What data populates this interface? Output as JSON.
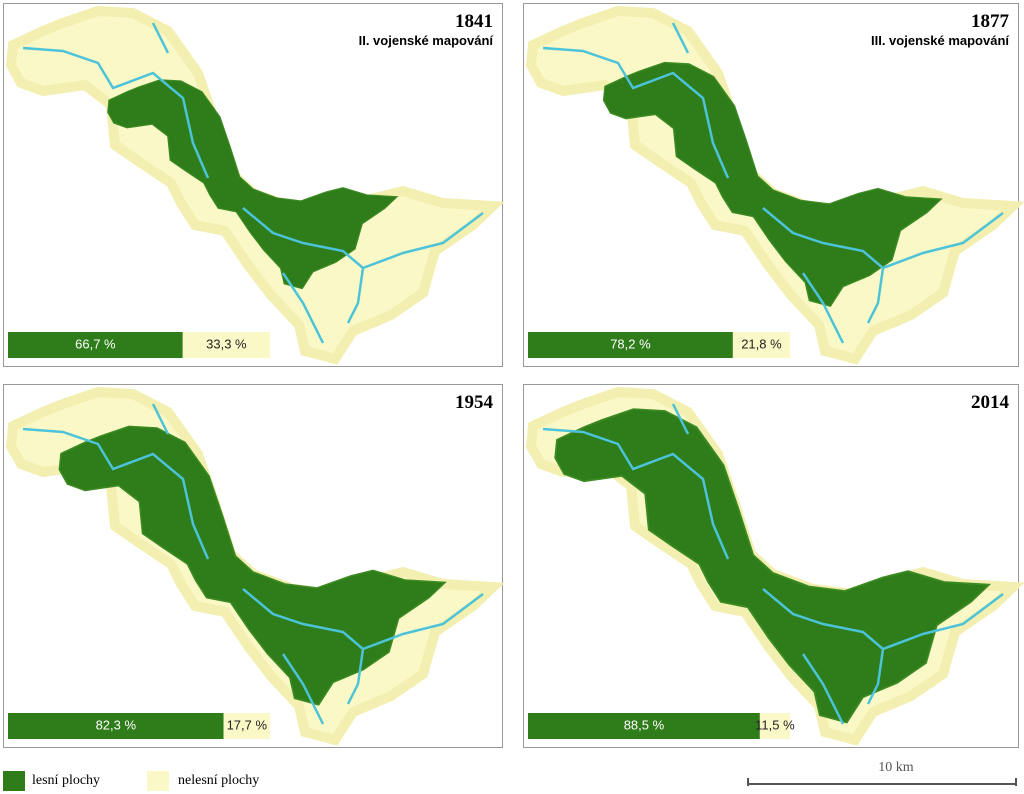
{
  "panels": [
    {
      "year": "1841",
      "subtitle": "II. vojenské mapování",
      "forest": 66.7,
      "nonforest": 33.3,
      "forest_label": "66,7 %",
      "nonforest_label": "33,3 %"
    },
    {
      "year": "1877",
      "subtitle": "III. vojenské mapování",
      "forest": 78.2,
      "nonforest": 21.8,
      "forest_label": "78,2 %",
      "nonforest_label": "21,8 %"
    },
    {
      "year": "1954",
      "forest": 82.3,
      "nonforest": 17.7,
      "forest_label": "82,3 %",
      "nonforest_label": "17,7 %"
    },
    {
      "year": "2014",
      "forest": 88.5,
      "nonforest": 11.5,
      "forest_label": "88,5 %",
      "nonforest_label": "11,5 %"
    }
  ],
  "legend": {
    "forest": "lesní plochy",
    "nonforest": "nelesní plochy"
  },
  "scale": "10 km"
}
